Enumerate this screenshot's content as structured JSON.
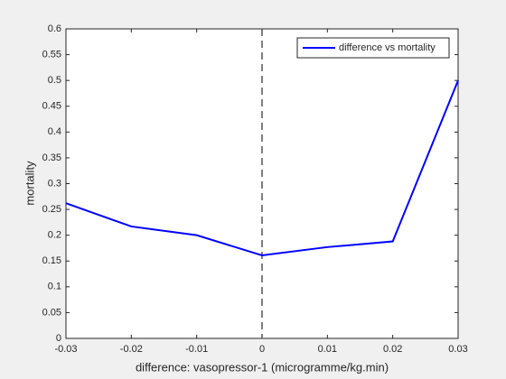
{
  "chart_data": {
    "type": "line",
    "x": [
      -0.03,
      -0.02,
      -0.01,
      0,
      0.01,
      0.02,
      0.03
    ],
    "series": [
      {
        "name": "difference vs mortality",
        "color": "#0000ff",
        "values": [
          0.262,
          0.217,
          0.2,
          0.161,
          0.177,
          0.188,
          0.5
        ]
      }
    ],
    "xlabel": "difference: vasopressor-1 (microgramme/kg.min)",
    "ylabel": "mortality",
    "xlim": [
      -0.03,
      0.03
    ],
    "xticks": [
      -0.03,
      -0.02,
      -0.01,
      0,
      0.01,
      0.02,
      0.03
    ],
    "ylim": [
      0,
      0.6
    ],
    "yticks": [
      0,
      0.05,
      0.1,
      0.15,
      0.2,
      0.25,
      0.3,
      0.35,
      0.4,
      0.45,
      0.5,
      0.55,
      0.6
    ],
    "vline": 0,
    "legend": "northeast",
    "grid": false
  }
}
